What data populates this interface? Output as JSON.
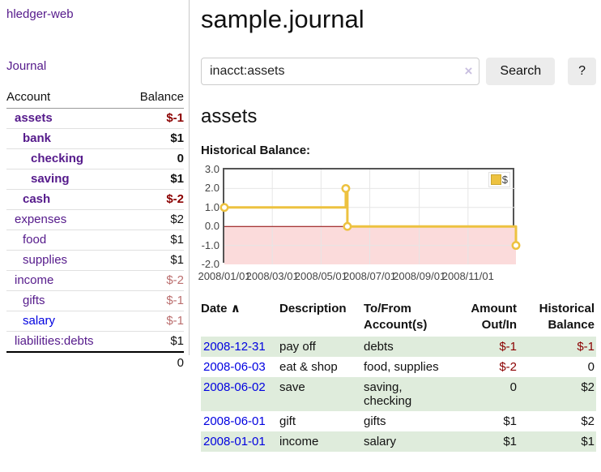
{
  "app": {
    "brand": "hledger-web"
  },
  "sidebar": {
    "nav_journal": "Journal",
    "table": {
      "headers": {
        "account": "Account",
        "balance": "Balance"
      },
      "rows": [
        {
          "account": "assets",
          "balance": "$-1",
          "depth": 1,
          "bold": true,
          "balance_tone": "neg-strong"
        },
        {
          "account": "bank",
          "balance": "$1",
          "depth": 2,
          "bold": true,
          "balance_tone": ""
        },
        {
          "account": "checking",
          "balance": "0",
          "depth": 3,
          "bold": true,
          "balance_tone": ""
        },
        {
          "account": "saving",
          "balance": "$1",
          "depth": 3,
          "bold": true,
          "balance_tone": ""
        },
        {
          "account": "cash",
          "balance": "$-2",
          "depth": 2,
          "bold": true,
          "balance_tone": "neg-strong"
        },
        {
          "account": "expenses",
          "balance": "$2",
          "depth": 1,
          "bold": false,
          "balance_tone": ""
        },
        {
          "account": "food",
          "balance": "$1",
          "depth": 2,
          "bold": false,
          "balance_tone": ""
        },
        {
          "account": "supplies",
          "balance": "$1",
          "depth": 2,
          "bold": false,
          "balance_tone": ""
        },
        {
          "account": "income",
          "balance": "$-2",
          "depth": 1,
          "bold": false,
          "balance_tone": "neg-soft"
        },
        {
          "account": "gifts",
          "balance": "$-1",
          "depth": 2,
          "bold": false,
          "balance_tone": "neg-soft"
        },
        {
          "account": "salary",
          "balance": "$-1",
          "depth": 2,
          "bold": false,
          "balance_tone": "neg-soft",
          "link_tone": "blue"
        },
        {
          "account": "liabilities:debts",
          "balance": "$1",
          "depth": 1,
          "bold": false,
          "balance_tone": ""
        }
      ],
      "total": "0"
    }
  },
  "main": {
    "title": "sample.journal",
    "search": {
      "value": "inacct:assets",
      "clear_icon": "×",
      "search_button": "Search",
      "help_button": "?"
    },
    "account_heading": "assets",
    "chart_label": "Historical Balance:",
    "chart_data": {
      "type": "line",
      "title": "Historical Balance",
      "step": true,
      "xlim": [
        "2008-01-01",
        "2008-12-31"
      ],
      "ylim": [
        -2,
        3
      ],
      "yticks": [
        "3.0",
        "2.0",
        "1.0",
        "0.0",
        "-1.0",
        "-2.0"
      ],
      "xticks": [
        "2008/01/01",
        "2008/03/01",
        "2008/05/01",
        "2008/07/01",
        "2008/09/01",
        "2008/11/01"
      ],
      "grid": true,
      "series": [
        {
          "name": "$",
          "color": "#edc240",
          "points": [
            {
              "date": "2008-01-01",
              "value": 1
            },
            {
              "date": "2008-06-01",
              "value": 2
            },
            {
              "date": "2008-06-03",
              "value": 0
            },
            {
              "date": "2008-12-31",
              "value": -1
            }
          ]
        }
      ],
      "negative_region_color": "#fbdbdb",
      "zero_line_color": "#8b0000",
      "gridline_color": "#e6e6e6",
      "legend": {
        "label": "$",
        "swatch_color": "#edc240",
        "position": "top-right"
      }
    },
    "register": {
      "headers": {
        "date": "Date",
        "sort_indicator": "∧",
        "description": "Description",
        "accounts": "To/From Account(s)",
        "amount": "Amount Out/In",
        "balance": "Historical Balance"
      },
      "rows": [
        {
          "date": "2008-12-31",
          "description": "pay off",
          "accounts": "debts",
          "amount": "$-1",
          "amount_tone": "neg",
          "balance": "$-1",
          "balance_tone": "neg"
        },
        {
          "date": "2008-06-03",
          "description": "eat & shop",
          "accounts": "food, supplies",
          "amount": "$-2",
          "amount_tone": "neg",
          "balance": "0",
          "balance_tone": ""
        },
        {
          "date": "2008-06-02",
          "description": "save",
          "accounts": "saving, checking",
          "amount": "0",
          "amount_tone": "",
          "balance": "$2",
          "balance_tone": ""
        },
        {
          "date": "2008-06-01",
          "description": "gift",
          "accounts": "gifts",
          "amount": "$1",
          "amount_tone": "",
          "balance": "$2",
          "balance_tone": ""
        },
        {
          "date": "2008-01-01",
          "description": "income",
          "accounts": "salary",
          "amount": "$1",
          "amount_tone": "",
          "balance": "$1",
          "balance_tone": ""
        }
      ]
    }
  }
}
